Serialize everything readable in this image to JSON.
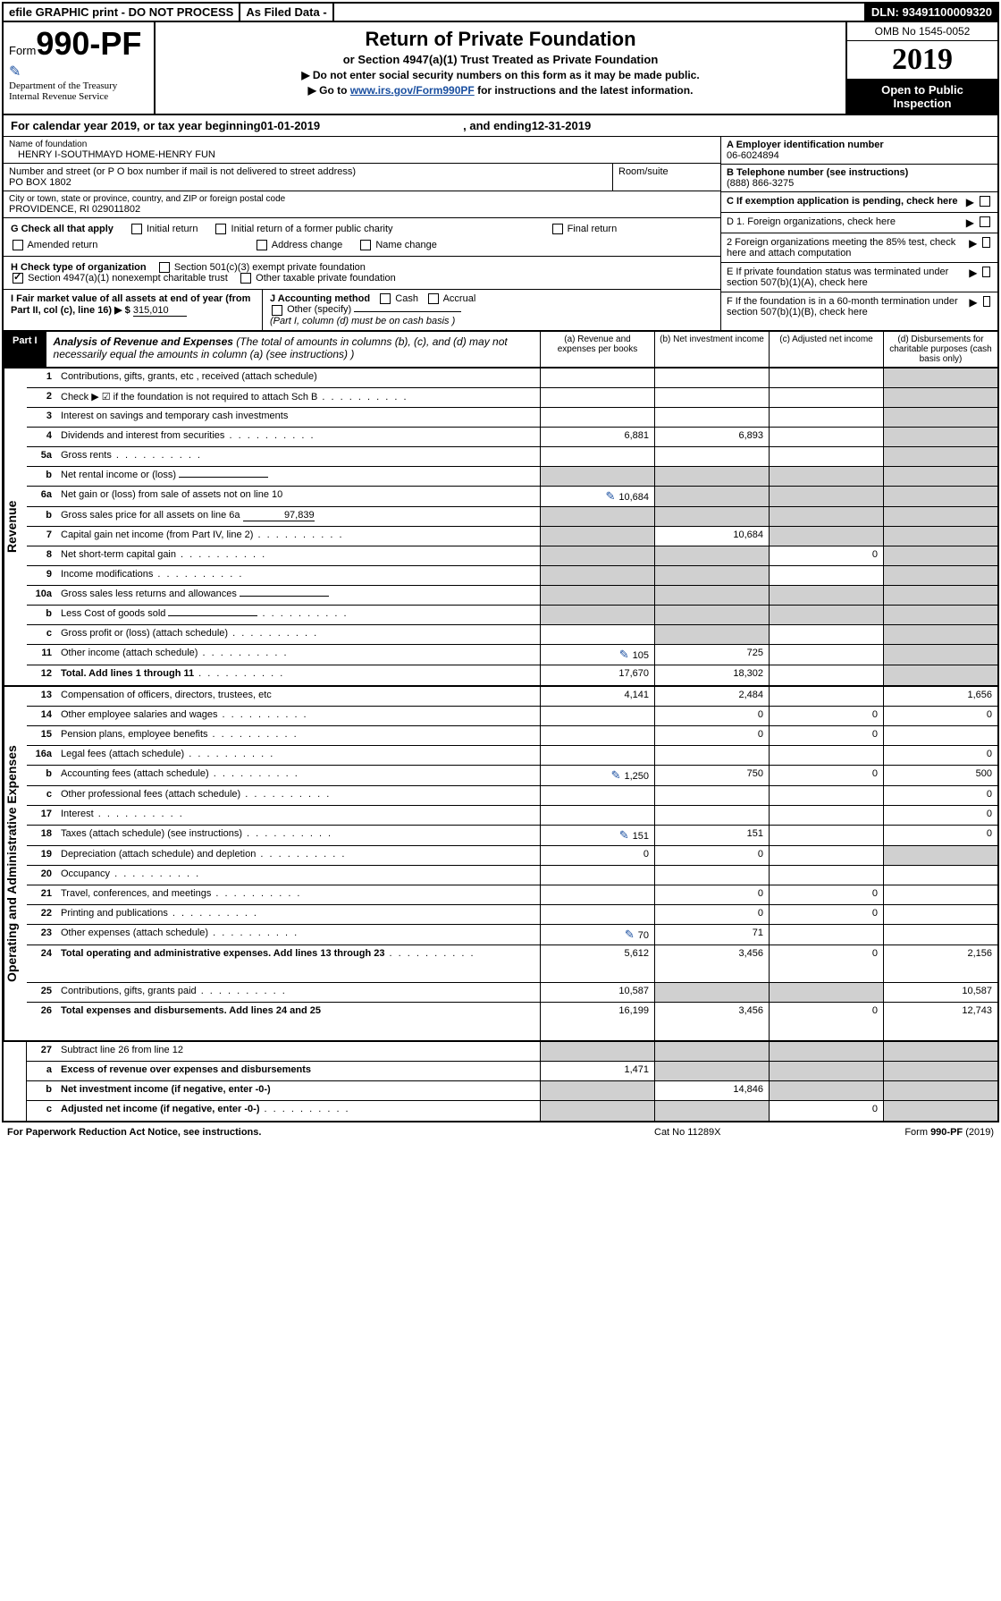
{
  "top_strip": {
    "efile": "efile GRAPHIC print - DO NOT PROCESS",
    "asfiled": "As Filed Data -",
    "dln": "DLN: 93491100009320"
  },
  "header": {
    "form_prefix": "Form",
    "form_number": "990-PF",
    "dept1": "Department of the Treasury",
    "dept2": "Internal Revenue Service",
    "title": "Return of Private Foundation",
    "sub1": "or Section 4947(a)(1) Trust Treated as Private Foundation",
    "sub2a": "▶ Do not enter social security numbers on this form as it may be made public.",
    "sub2b_pre": "▶ Go to ",
    "sub2b_link": "www.irs.gov/Form990PF",
    "sub2b_post": " for instructions and the latest information.",
    "omb": "OMB No 1545-0052",
    "year": "2019",
    "inspection": "Open to Public Inspection"
  },
  "cal_year": {
    "pre": "For calendar year 2019, or tax year beginning ",
    "begin": "01-01-2019",
    "mid": ", and ending ",
    "end": "12-31-2019"
  },
  "foundation": {
    "name_label": "Name of foundation",
    "name": "HENRY I-SOUTHMAYD HOME-HENRY FUN",
    "addr_label": "Number and street (or P O  box number if mail is not delivered to street address)",
    "room_label": "Room/suite",
    "addr": "PO BOX 1802",
    "city_label": "City or town, state or province, country, and ZIP or foreign postal code",
    "city": "PROVIDENCE, RI  029011802",
    "ein_label": "A Employer identification number",
    "ein": "06-6024894",
    "tel_label": "B Telephone number (see instructions)",
    "tel": "(888) 866-3275",
    "c_label": "C If exemption application is pending, check here"
  },
  "sections": {
    "g_label": "G Check all that apply",
    "g_opts": [
      "Initial return",
      "Initial return of a former public charity",
      "Final return",
      "Amended return",
      "Address change",
      "Name change"
    ],
    "h_label": "H Check type of organization",
    "h_opts": [
      "Section 501(c)(3) exempt private foundation",
      "Section 4947(a)(1) nonexempt charitable trust",
      "Other taxable private foundation"
    ],
    "h_checked_idx": 1,
    "i_label": "I Fair market value of all assets at end of year (from Part II, col  (c), line 16) ▶ $",
    "i_value": "315,010",
    "j_label": "J Accounting method",
    "j_opts": [
      "Cash",
      "Accrual",
      "Other (specify)"
    ],
    "j_note": "(Part I, column (d) must be on cash basis )",
    "d1": "D 1. Foreign organizations, check here",
    "d2": "2 Foreign organizations meeting the 85% test, check here and attach computation",
    "e": "E  If private foundation status was terminated under section 507(b)(1)(A), check here",
    "f": "F  If the foundation is in a 60-month termination under section 507(b)(1)(B), check here"
  },
  "part1": {
    "label": "Part I",
    "title": "Analysis of Revenue and Expenses",
    "note": "(The total of amounts in columns (b), (c), and (d) may not necessarily equal the amounts in column (a) (see instructions) )",
    "col_a": "(a) Revenue and expenses per books",
    "col_b": "(b) Net investment income",
    "col_c": "(c) Adjusted net income",
    "col_d": "(d) Disbursements for charitable purposes (cash basis only)"
  },
  "revenue_label": "Revenue",
  "expenses_label": "Operating and Administrative Expenses",
  "revenue_rows": [
    {
      "no": "1",
      "desc": "Contributions, gifts, grants, etc , received (attach schedule)",
      "a": "",
      "b": "",
      "c": "",
      "d": "",
      "shade_d": true
    },
    {
      "no": "2",
      "desc": "Check ▶ ☑ if the foundation is not required to attach Sch  B",
      "dots": true,
      "a": "",
      "b": "",
      "c": "",
      "d": "",
      "shade_d": true
    },
    {
      "no": "3",
      "desc": "Interest on savings and temporary cash investments",
      "a": "",
      "b": "",
      "c": "",
      "d": "",
      "shade_d": true
    },
    {
      "no": "4",
      "desc": "Dividends and interest from securities",
      "dots": true,
      "a": "6,881",
      "b": "6,893",
      "c": "",
      "d": "",
      "shade_d": true
    },
    {
      "no": "5a",
      "desc": "Gross rents",
      "dots": true,
      "a": "",
      "b": "",
      "c": "",
      "d": "",
      "shade_d": true
    },
    {
      "no": "b",
      "desc": "Net rental income or (loss)",
      "inline_blank": true,
      "a": "",
      "b": "",
      "c": "",
      "d": "",
      "shade_abcd": true
    },
    {
      "no": "6a",
      "desc": "Net gain or (loss) from sale of assets not on line 10",
      "link": true,
      "a": "10,684",
      "b": "",
      "c": "",
      "d": "",
      "shade_bcd": true
    },
    {
      "no": "b",
      "desc": "Gross sales price for all assets on line 6a",
      "inline_val": "97,839",
      "a": "",
      "b": "",
      "c": "",
      "d": "",
      "shade_abcd": true
    },
    {
      "no": "7",
      "desc": "Capital gain net income (from Part IV, line 2)",
      "dots": true,
      "a": "",
      "b": "10,684",
      "c": "",
      "d": "",
      "shade_a": true,
      "shade_cd": true
    },
    {
      "no": "8",
      "desc": "Net short-term capital gain",
      "dots": true,
      "a": "",
      "b": "",
      "c": "0",
      "d": "",
      "shade_ab": true,
      "shade_d": true
    },
    {
      "no": "9",
      "desc": "Income modifications",
      "dots": true,
      "a": "",
      "b": "",
      "c": "",
      "d": "",
      "shade_ab": true,
      "shade_d": true
    },
    {
      "no": "10a",
      "desc": "Gross sales less returns and allowances",
      "inline_blank": true,
      "a": "",
      "b": "",
      "c": "",
      "d": "",
      "shade_abcd": true
    },
    {
      "no": "b",
      "desc": "Less  Cost of goods sold",
      "dots": true,
      "inline_blank": true,
      "a": "",
      "b": "",
      "c": "",
      "d": "",
      "shade_abcd": true
    },
    {
      "no": "c",
      "desc": "Gross profit or (loss) (attach schedule)",
      "dots": true,
      "a": "",
      "b": "",
      "c": "",
      "d": "",
      "shade_b": true,
      "shade_d": true
    },
    {
      "no": "11",
      "desc": "Other income (attach schedule)",
      "dots": true,
      "link": true,
      "a": "105",
      "b": "725",
      "c": "",
      "d": "",
      "shade_d": true
    },
    {
      "no": "12",
      "desc": "Total. Add lines 1 through 11",
      "dots": true,
      "bold": true,
      "a": "17,670",
      "b": "18,302",
      "c": "",
      "d": "",
      "shade_d": true
    }
  ],
  "expense_rows": [
    {
      "no": "13",
      "desc": "Compensation of officers, directors, trustees, etc",
      "a": "4,141",
      "b": "2,484",
      "c": "",
      "d": "1,656"
    },
    {
      "no": "14",
      "desc": "Other employee salaries and wages",
      "dots": true,
      "a": "",
      "b": "0",
      "c": "0",
      "d": "0"
    },
    {
      "no": "15",
      "desc": "Pension plans, employee benefits",
      "dots": true,
      "a": "",
      "b": "0",
      "c": "0",
      "d": ""
    },
    {
      "no": "16a",
      "desc": "Legal fees (attach schedule)",
      "dots": true,
      "a": "",
      "b": "",
      "c": "",
      "d": "0"
    },
    {
      "no": "b",
      "desc": "Accounting fees (attach schedule)",
      "dots": true,
      "link": true,
      "a": "1,250",
      "b": "750",
      "c": "0",
      "d": "500"
    },
    {
      "no": "c",
      "desc": "Other professional fees (attach schedule)",
      "dots": true,
      "a": "",
      "b": "",
      "c": "",
      "d": "0"
    },
    {
      "no": "17",
      "desc": "Interest",
      "dots": true,
      "a": "",
      "b": "",
      "c": "",
      "d": "0"
    },
    {
      "no": "18",
      "desc": "Taxes (attach schedule) (see instructions)",
      "dots": true,
      "link": true,
      "a": "151",
      "b": "151",
      "c": "",
      "d": "0"
    },
    {
      "no": "19",
      "desc": "Depreciation (attach schedule) and depletion",
      "dots": true,
      "a": "0",
      "b": "0",
      "c": "",
      "d": "",
      "shade_d": true
    },
    {
      "no": "20",
      "desc": "Occupancy",
      "dots": true,
      "a": "",
      "b": "",
      "c": "",
      "d": ""
    },
    {
      "no": "21",
      "desc": "Travel, conferences, and meetings",
      "dots": true,
      "a": "",
      "b": "0",
      "c": "0",
      "d": ""
    },
    {
      "no": "22",
      "desc": "Printing and publications",
      "dots": true,
      "a": "",
      "b": "0",
      "c": "0",
      "d": ""
    },
    {
      "no": "23",
      "desc": "Other expenses (attach schedule)",
      "dots": true,
      "link": true,
      "a": "70",
      "b": "71",
      "c": "",
      "d": ""
    },
    {
      "no": "24",
      "desc": "Total operating and administrative expenses. Add lines 13 through 23",
      "dots": true,
      "bold": true,
      "a": "5,612",
      "b": "3,456",
      "c": "0",
      "d": "2,156",
      "tall": true
    },
    {
      "no": "25",
      "desc": "Contributions, gifts, grants paid",
      "dots": true,
      "a": "10,587",
      "b": "",
      "c": "",
      "d": "10,587",
      "shade_bc": true
    },
    {
      "no": "26",
      "desc": "Total expenses and disbursements. Add lines 24 and 25",
      "bold": true,
      "a": "16,199",
      "b": "3,456",
      "c": "0",
      "d": "12,743",
      "tall": true
    }
  ],
  "bottom_rows": [
    {
      "no": "27",
      "desc": "Subtract line 26 from line 12",
      "a": "",
      "b": "",
      "c": "",
      "d": "",
      "shade_abcd": true
    },
    {
      "no": "a",
      "desc": "Excess of revenue over expenses and disbursements",
      "bold": true,
      "a": "1,471",
      "b": "",
      "c": "",
      "d": "",
      "shade_bcd": true
    },
    {
      "no": "b",
      "desc": "Net investment income (if negative, enter -0-)",
      "bold": true,
      "a": "",
      "b": "14,846",
      "c": "",
      "d": "",
      "shade_a": true,
      "shade_cd": true
    },
    {
      "no": "c",
      "desc": "Adjusted net income (if negative, enter -0-)",
      "dots": true,
      "bold": true,
      "a": "",
      "b": "",
      "c": "0",
      "d": "",
      "shade_ab": true,
      "shade_d": true
    }
  ],
  "footer": {
    "left": "For Paperwork Reduction Act Notice, see instructions.",
    "mid": "Cat  No  11289X",
    "right": "Form 990-PF (2019)"
  }
}
